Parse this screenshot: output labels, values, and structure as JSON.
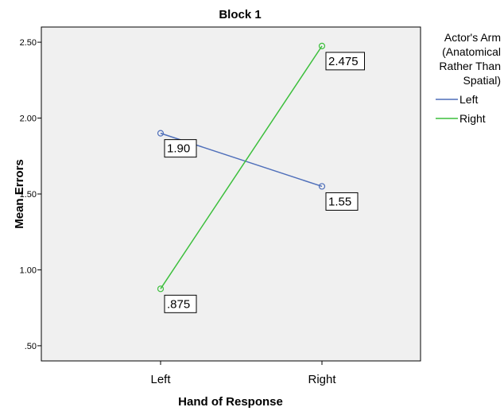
{
  "chart_data": {
    "type": "line",
    "title": "Block 1",
    "xlabel": "Hand of Response",
    "ylabel": "Mean Errors",
    "categories": [
      "Left",
      "Right"
    ],
    "ylim": [
      0.4,
      2.6
    ],
    "yticks": [
      ".50",
      "1.00",
      "1.50",
      "2.00",
      "2.50"
    ],
    "ytick_values": [
      0.5,
      1.0,
      1.5,
      2.0,
      2.5
    ],
    "legend_title": [
      "Actor's Arm",
      "(Anatomical",
      "Rather Than",
      "Spatial)"
    ],
    "legend_position": "right",
    "grid": false,
    "plot_background": "#f0f0f0",
    "series": [
      {
        "name": "Left",
        "color": "#4f6fba",
        "values": [
          1.9,
          1.55
        ],
        "labels": [
          "1.90",
          "1.55"
        ]
      },
      {
        "name": "Right",
        "color": "#3cbf3c",
        "values": [
          0.875,
          2.475
        ],
        "labels": [
          ".875",
          "2.475"
        ]
      }
    ]
  }
}
